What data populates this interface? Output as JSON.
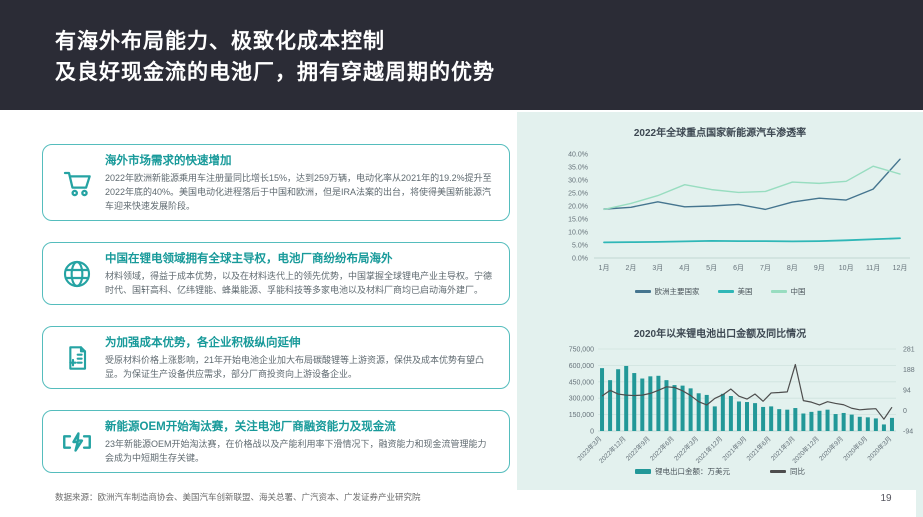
{
  "header": {
    "title_line1": "有海外布局能力、极致化成本控制",
    "title_line2": "及良好现金流的电池厂，拥有穿越周期的优势"
  },
  "cards": [
    {
      "icon": "cart-icon",
      "title": "海外市场需求的快速增加",
      "body": "2022年欧洲新能源乘用车注册量同比增长15%，达到259万辆，电动化率从2021年的19.2%提升至2022年底的40%。美国电动化进程落后于中国和欧洲，但是IRA法案的出台，将使得美国新能源汽车迎来快速发展阶段。"
    },
    {
      "icon": "globe-icon",
      "title": "中国在锂电领域拥有全球主导权，电池厂商纷纷布局海外",
      "body": "材料领域，得益于成本优势，以及在材料迭代上的领先优势，中国掌握全球锂电产业主导权。宁德时代、国轩高科、亿纬锂能、蜂巢能源、孚能科技等多家电池以及材料厂商均已启动海外建厂。"
    },
    {
      "icon": "document-plus-icon",
      "title": "为加强成本优势，各企业积极纵向延伸",
      "body": "受原材料价格上涨影响，21年开始电池企业加大布局碳酸锂等上游资源，保供及成本优势有望凸显。为保证生产设备供应需求，部分厂商投资向上游设备企业。"
    },
    {
      "icon": "battery-bolt-icon",
      "title": "新能源OEM开始淘汰赛，关注电池厂商融资能力及现金流",
      "body": "23年新能源OEM开始淘汰赛，在价格战以及产能利用率下滑情况下，融资能力和现金流管理能力会成为中短期生存关键。"
    }
  ],
  "footer": {
    "source": "数据来源：欧洲汽车制造商协会、美国汽车创新联盟、海关总署、广汽资本、广发证券产业研究院",
    "page_number": "19"
  },
  "colors": {
    "header_bg": "#2b2c36",
    "panel_bg": "#e3f1ee",
    "accent_teal": "#25a3a3"
  },
  "chart_data": [
    {
      "type": "line",
      "title": "2022年全球重点国家新能源汽车渗透率",
      "categories": [
        "1月",
        "2月",
        "3月",
        "4月",
        "5月",
        "6月",
        "7月",
        "8月",
        "9月",
        "10月",
        "11月",
        "12月"
      ],
      "series": [
        {
          "name": "欧洲主要国家",
          "color": "#45758f",
          "values": [
            18.8,
            19.5,
            21.6,
            19.7,
            20.0,
            20.6,
            18.7,
            21.5,
            23.0,
            22.3,
            26.5,
            38.0
          ]
        },
        {
          "name": "美国",
          "color": "#2fb7b7",
          "values": [
            6.0,
            6.1,
            6.2,
            6.4,
            6.6,
            6.5,
            6.5,
            6.4,
            6.5,
            6.8,
            7.2,
            7.6
          ]
        },
        {
          "name": "中国",
          "color": "#98ddc0",
          "values": [
            18.7,
            21.0,
            24.0,
            28.2,
            26.3,
            25.2,
            25.6,
            29.2,
            28.7,
            29.5,
            35.3,
            32.3
          ]
        }
      ],
      "ylim": [
        0,
        40
      ],
      "ytick_step": 5,
      "ytick_suffix": "%",
      "grid": false,
      "legend_position": "bottom"
    },
    {
      "type": "bar+line",
      "title": "2020年以来锂电池出口金额及同比情况",
      "categories": [
        "2023年3月",
        "2023年2月",
        "2023年1月",
        "2022年12月",
        "2022年11月",
        "2022年10月",
        "2022年9月",
        "2022年8月",
        "2022年7月",
        "2022年6月",
        "2022年5月",
        "2022年4月",
        "2022年3月",
        "2022年2月",
        "2022年1月",
        "2021年12月",
        "2021年11月",
        "2021年10月",
        "2021年9月",
        "2021年8月",
        "2021年7月",
        "2021年6月",
        "2021年5月",
        "2021年4月",
        "2021年3月",
        "2021年2月",
        "2021年1月",
        "2020年12月",
        "2020年11月",
        "2020年10月",
        "2020年9月",
        "2020年8月",
        "2020年7月",
        "2020年6月",
        "2020年5月",
        "2020年4月",
        "2020年3月"
      ],
      "label_every": 3,
      "bar_series": {
        "name": "锂电出口金额：万美元",
        "color": "#229898",
        "values": [
          575000,
          465000,
          565000,
          595000,
          530000,
          480000,
          500000,
          505000,
          465000,
          420000,
          415000,
          390000,
          345000,
          330000,
          225000,
          340000,
          320000,
          270000,
          265000,
          255000,
          220000,
          225000,
          200000,
          195000,
          210000,
          160000,
          175000,
          185000,
          195000,
          155000,
          165000,
          150000,
          130000,
          125000,
          115000,
          60000,
          120000
        ]
      },
      "line_series": {
        "name": "同比",
        "color": "#4d4d4d",
        "values": [
          66,
          92,
          75,
          70,
          68,
          70,
          78,
          92,
          108,
          105,
          90,
          68,
          40,
          25,
          55,
          72,
          98,
          65,
          52,
          75,
          42,
          80,
          82,
          85,
          210,
          45,
          38,
          25,
          40,
          32,
          26,
          10,
          3,
          6,
          8,
          -40,
          15
        ]
      },
      "ylim_left": [
        0,
        750000
      ],
      "yticks_left": [
        0,
        150000,
        300000,
        450000,
        600000,
        750000
      ],
      "ylim_right": [
        -94,
        281
      ],
      "yticks_right": [
        -94,
        0,
        94,
        188,
        281
      ],
      "grid": true,
      "legend_position": "bottom"
    }
  ]
}
